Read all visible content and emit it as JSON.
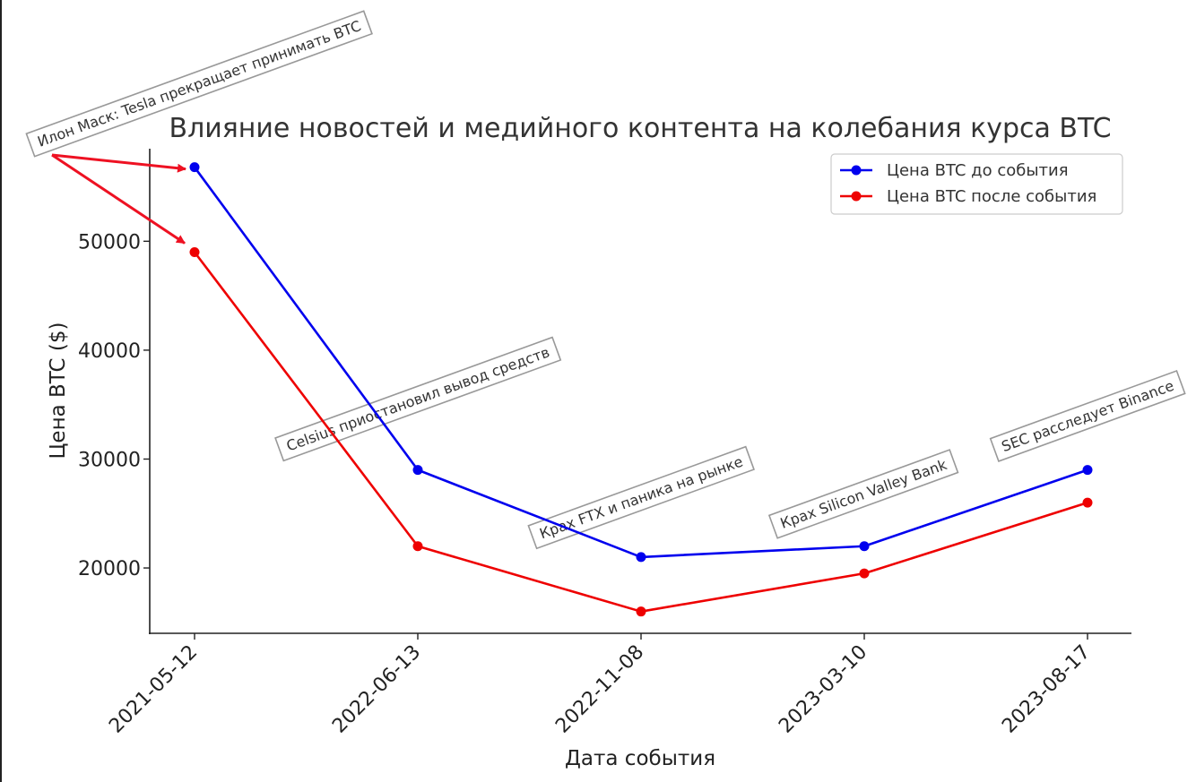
{
  "chart_data": {
    "type": "line",
    "title": "Влияние новостей и медийного контента на колебания курса BTC",
    "xlabel": "Дата события",
    "ylabel": "Цена BTC ($)",
    "categories": [
      "2021-05-12",
      "2022-06-13",
      "2022-11-08",
      "2023-03-10",
      "2023-08-17"
    ],
    "ylim": [
      14000,
      58500
    ],
    "yticks": [
      "20000",
      "30000",
      "40000",
      "50000"
    ],
    "grid": false,
    "legend_position": "top-right",
    "series": [
      {
        "name": "Цена BTC до события",
        "color": "#0000ee",
        "values": [
          56800,
          29000,
          21000,
          22000,
          29000
        ]
      },
      {
        "name": "Цена BTC после события",
        "color": "#ee0000",
        "values": [
          49000,
          22000,
          16000,
          19500,
          26000
        ]
      }
    ],
    "annotations": [
      {
        "text": "Илон Маск: Tesla прекращает принимать BTC",
        "category": "2021-05-12",
        "arrow_color": "#ee1122"
      },
      {
        "text": "Celsius приостановил вывод средств",
        "category": "2022-06-13"
      },
      {
        "text": "Крах FTX и паника на рынке",
        "category": "2022-11-08"
      },
      {
        "text": "Крах Silicon Valley Bank",
        "category": "2023-03-10"
      },
      {
        "text": "SEC расследует Binance",
        "category": "2023-08-17"
      }
    ]
  }
}
